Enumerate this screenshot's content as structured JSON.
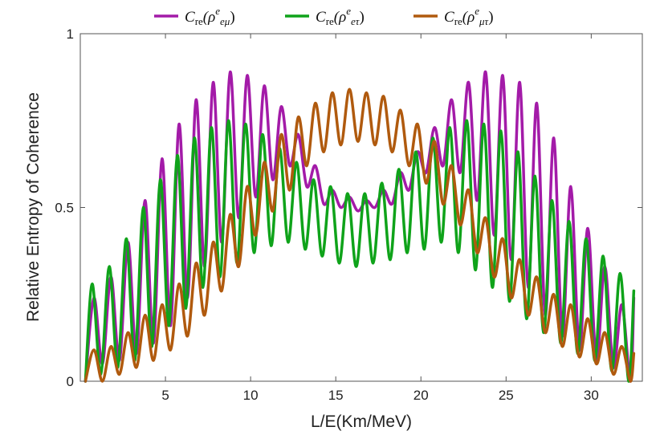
{
  "chart_data": {
    "type": "line",
    "xlabel": "L/E(Km/MeV)",
    "ylabel": "Relative Entropy of Coherence",
    "xlim": [
      0,
      33
    ],
    "ylim": [
      0,
      1
    ],
    "xticks": [
      5,
      10,
      15,
      20,
      25,
      30
    ],
    "yticks": [
      0,
      0.5,
      1
    ],
    "ytick_labels": [
      "0",
      "0.5",
      "1"
    ],
    "grid": false,
    "legend_position": "top-center",
    "series": [
      {
        "key": "emu",
        "legend": {
          "base": "C",
          "sub": "re",
          "open": "(ρ",
          "sup": "e",
          "sub2": "eμ",
          "close": ")"
        },
        "color": "#a31ba8",
        "x": [
          0.3,
          0.8,
          1.3,
          1.8,
          2.3,
          2.8,
          3.3,
          3.8,
          4.3,
          4.8,
          5.3,
          5.8,
          6.3,
          6.8,
          7.3,
          7.8,
          8.3,
          8.8,
          9.3,
          9.8,
          10.3,
          10.8,
          11.3,
          11.8,
          12.3,
          12.8,
          13.3,
          13.8,
          14.3,
          14.8,
          15.3,
          15.8,
          16.3,
          16.8,
          17.3,
          17.8,
          18.3,
          18.8,
          19.3,
          19.8,
          20.3,
          20.8,
          21.3,
          21.8,
          22.3,
          22.8,
          23.3,
          23.8,
          24.3,
          24.8,
          25.3,
          25.8,
          26.3,
          26.8,
          27.3,
          27.8,
          28.3,
          28.8,
          29.3,
          29.8,
          30.3,
          30.8,
          31.3,
          31.8,
          32.3,
          32.5
        ],
        "y": [
          0.0,
          0.24,
          0.05,
          0.3,
          0.06,
          0.4,
          0.08,
          0.52,
          0.11,
          0.64,
          0.16,
          0.74,
          0.24,
          0.81,
          0.33,
          0.86,
          0.4,
          0.89,
          0.47,
          0.88,
          0.53,
          0.85,
          0.58,
          0.79,
          0.62,
          0.71,
          0.56,
          0.62,
          0.51,
          0.55,
          0.5,
          0.53,
          0.49,
          0.52,
          0.5,
          0.55,
          0.51,
          0.6,
          0.55,
          0.66,
          0.6,
          0.73,
          0.62,
          0.81,
          0.6,
          0.86,
          0.52,
          0.89,
          0.42,
          0.88,
          0.35,
          0.86,
          0.27,
          0.8,
          0.19,
          0.7,
          0.13,
          0.56,
          0.09,
          0.44,
          0.06,
          0.33,
          0.04,
          0.22,
          0.0,
          0.24
        ]
      },
      {
        "key": "etau",
        "legend": {
          "base": "C",
          "sub": "re",
          "open": "(ρ",
          "sup": "e",
          "sub2": "eτ",
          "close": ")"
        },
        "color": "#0fa31a",
        "x": [
          0.3,
          0.7,
          1.2,
          1.7,
          2.2,
          2.7,
          3.2,
          3.7,
          4.2,
          4.7,
          5.2,
          5.7,
          6.2,
          6.7,
          7.2,
          7.7,
          8.2,
          8.7,
          9.2,
          9.7,
          10.2,
          10.7,
          11.2,
          11.7,
          12.2,
          12.7,
          13.2,
          13.7,
          14.2,
          14.7,
          15.2,
          15.7,
          16.2,
          16.7,
          17.2,
          17.7,
          18.2,
          18.7,
          19.2,
          19.7,
          20.2,
          20.7,
          21.2,
          21.7,
          22.2,
          22.7,
          23.2,
          23.7,
          24.2,
          24.7,
          25.2,
          25.7,
          26.2,
          26.7,
          27.2,
          27.7,
          28.2,
          28.7,
          29.2,
          29.7,
          30.2,
          30.7,
          31.2,
          31.7,
          32.2,
          32.5
        ],
        "y": [
          0.0,
          0.28,
          0.02,
          0.33,
          0.04,
          0.41,
          0.06,
          0.5,
          0.1,
          0.58,
          0.16,
          0.65,
          0.21,
          0.7,
          0.27,
          0.73,
          0.3,
          0.75,
          0.34,
          0.74,
          0.37,
          0.71,
          0.39,
          0.67,
          0.4,
          0.63,
          0.38,
          0.58,
          0.36,
          0.56,
          0.34,
          0.54,
          0.33,
          0.54,
          0.34,
          0.57,
          0.35,
          0.61,
          0.37,
          0.66,
          0.38,
          0.7,
          0.4,
          0.73,
          0.37,
          0.75,
          0.32,
          0.74,
          0.27,
          0.72,
          0.23,
          0.66,
          0.18,
          0.59,
          0.14,
          0.52,
          0.11,
          0.46,
          0.08,
          0.41,
          0.06,
          0.36,
          0.03,
          0.31,
          0.0,
          0.26
        ]
      },
      {
        "key": "mutau",
        "legend": {
          "base": "C",
          "sub": "re",
          "open": "(ρ",
          "sup": "e",
          "sub2": "μτ",
          "close": ")"
        },
        "color": "#b05a0e",
        "x": [
          0.3,
          0.8,
          1.3,
          1.8,
          2.3,
          2.8,
          3.3,
          3.8,
          4.3,
          4.8,
          5.3,
          5.8,
          6.3,
          6.8,
          7.3,
          7.8,
          8.3,
          8.8,
          9.3,
          9.8,
          10.3,
          10.8,
          11.3,
          11.8,
          12.3,
          12.8,
          13.3,
          13.8,
          14.3,
          14.8,
          15.3,
          15.8,
          16.3,
          16.8,
          17.3,
          17.8,
          18.3,
          18.8,
          19.3,
          19.8,
          20.3,
          20.8,
          21.3,
          21.8,
          22.3,
          22.8,
          23.3,
          23.8,
          24.3,
          24.8,
          25.3,
          25.8,
          26.3,
          26.8,
          27.3,
          27.8,
          28.3,
          28.8,
          29.3,
          29.8,
          30.3,
          30.8,
          31.3,
          31.8,
          32.3,
          32.5
        ],
        "y": [
          0.0,
          0.09,
          0.0,
          0.1,
          0.02,
          0.14,
          0.04,
          0.19,
          0.06,
          0.22,
          0.09,
          0.28,
          0.13,
          0.34,
          0.19,
          0.4,
          0.26,
          0.48,
          0.33,
          0.56,
          0.42,
          0.63,
          0.49,
          0.71,
          0.55,
          0.76,
          0.62,
          0.8,
          0.66,
          0.83,
          0.68,
          0.84,
          0.69,
          0.83,
          0.68,
          0.82,
          0.66,
          0.78,
          0.62,
          0.74,
          0.57,
          0.69,
          0.51,
          0.62,
          0.45,
          0.55,
          0.37,
          0.47,
          0.3,
          0.41,
          0.24,
          0.35,
          0.19,
          0.3,
          0.14,
          0.25,
          0.1,
          0.22,
          0.07,
          0.18,
          0.05,
          0.14,
          0.02,
          0.1,
          0.0,
          0.08
        ]
      }
    ]
  }
}
